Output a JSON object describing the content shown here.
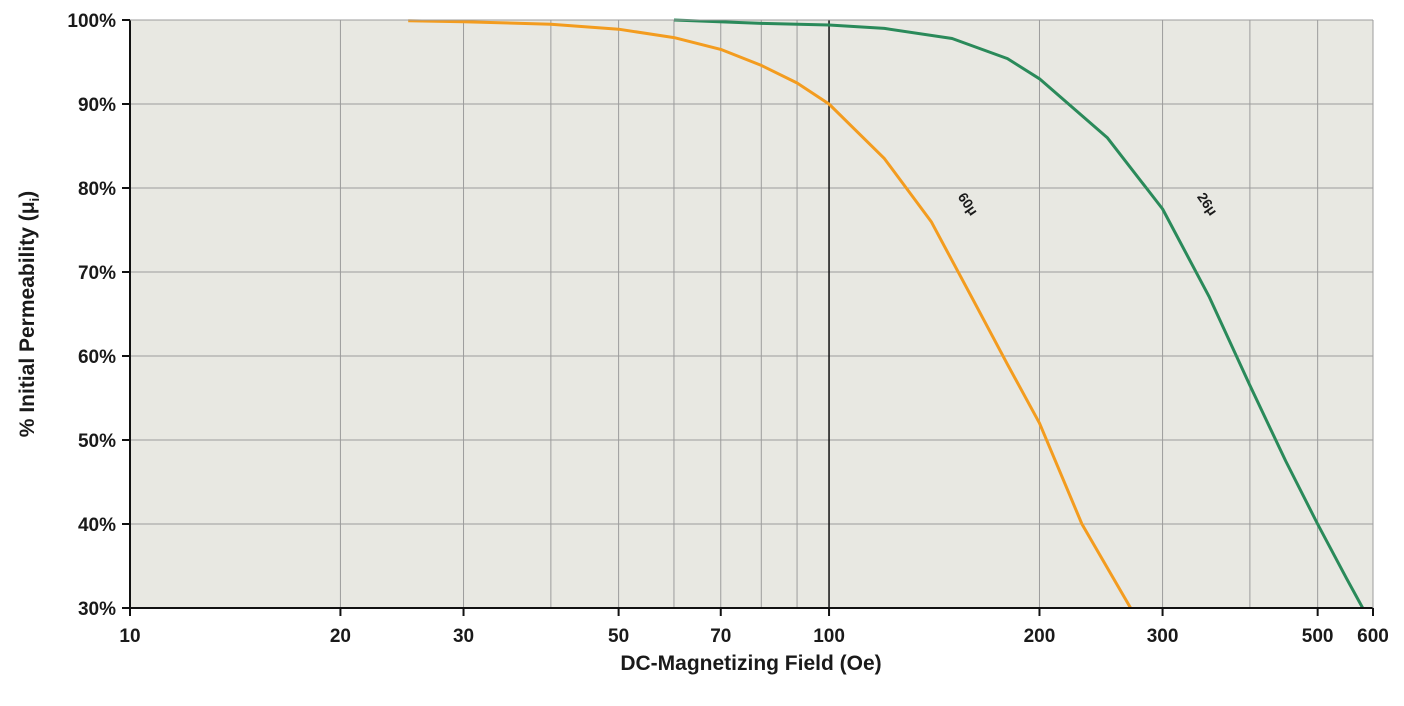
{
  "chart_data": {
    "type": "line",
    "xlabel": "DC-Magnetizing Field (Oe)",
    "ylabel": "% Initial Permeability (μ",
    "ylabel_sub": "i",
    "ylabel_close": ")",
    "x_scale": "log",
    "xlim": [
      10,
      600
    ],
    "ylim": [
      30,
      100
    ],
    "grid": true,
    "x_ticks": [
      10,
      20,
      30,
      50,
      70,
      100,
      200,
      300,
      500,
      600
    ],
    "x_tick_labels": [
      "10",
      "20",
      "30",
      "50",
      "70",
      "100",
      "200",
      "300",
      "500",
      "600"
    ],
    "x_minor_gridlines": [
      20,
      30,
      40,
      50,
      60,
      70,
      80,
      90,
      200,
      300,
      400,
      500
    ],
    "x_major_gridline": 100,
    "y_ticks": [
      30,
      40,
      50,
      60,
      70,
      80,
      90,
      100
    ],
    "y_tick_labels": [
      "30%",
      "40%",
      "50%",
      "60%",
      "70%",
      "80%",
      "90%",
      "100%"
    ],
    "series": [
      {
        "name": "60μ",
        "color": "#f39c1f",
        "x": [
          25,
          30,
          40,
          50,
          60,
          70,
          80,
          90,
          100,
          120,
          140,
          160,
          180,
          200,
          230,
          270
        ],
        "y": [
          99.9,
          99.8,
          99.5,
          98.9,
          97.9,
          96.5,
          94.6,
          92.5,
          90.0,
          83.5,
          76.0,
          67.0,
          59.0,
          52.0,
          40.0,
          30.0
        ]
      },
      {
        "name": "26μ",
        "color": "#2a8a5a",
        "x": [
          60,
          80,
          100,
          120,
          150,
          180,
          200,
          250,
          300,
          350,
          400,
          450,
          500,
          550,
          580
        ],
        "y": [
          100.0,
          99.6,
          99.4,
          99.0,
          97.8,
          95.4,
          93.0,
          86.0,
          77.5,
          67.0,
          56.5,
          47.5,
          40.0,
          33.5,
          30.0
        ]
      }
    ]
  }
}
